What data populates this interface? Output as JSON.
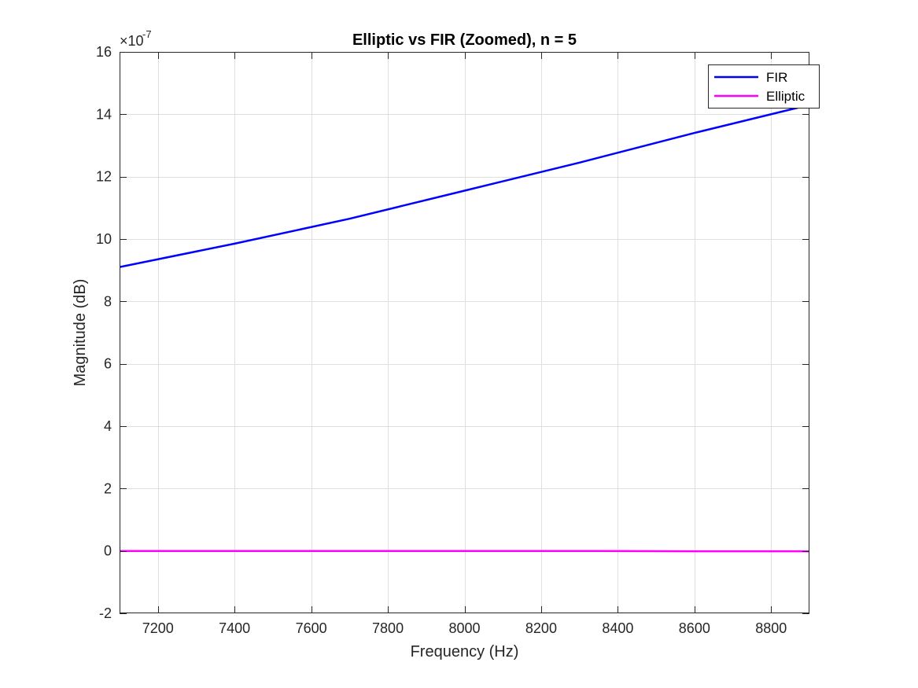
{
  "chart_data": {
    "type": "line",
    "title": "Elliptic vs FIR (Zoomed), n = 5",
    "xlabel": "Frequency (Hz)",
    "ylabel": "Magnitude (dB)",
    "xlim": [
      7100,
      8900
    ],
    "ylim": [
      -2,
      16
    ],
    "y_exponent_label": {
      "base": "×10",
      "exponent": "-7"
    },
    "xticks": [
      7200,
      7400,
      7600,
      7800,
      8000,
      8200,
      8400,
      8600,
      8800
    ],
    "xtick_labels": [
      "7200",
      "7400",
      "7600",
      "7800",
      "8000",
      "8200",
      "8400",
      "8600",
      "8800"
    ],
    "yticks": [
      -2,
      0,
      2,
      4,
      6,
      8,
      10,
      12,
      14,
      16
    ],
    "ytick_labels": [
      "-2",
      "0",
      "2",
      "4",
      "6",
      "8",
      "10",
      "12",
      "14",
      "16"
    ],
    "grid": true,
    "legend_position": "top-right",
    "series": [
      {
        "name": "FIR",
        "color": "#0000ff",
        "x": [
          7100,
          7400,
          7700,
          8000,
          8300,
          8600,
          8900
        ],
        "y": [
          9.1,
          9.85,
          10.65,
          11.55,
          12.45,
          13.4,
          14.3
        ]
      },
      {
        "name": "Elliptic",
        "color": "#ff00ff",
        "x": [
          7100,
          7400,
          7700,
          8000,
          8300,
          8600,
          8900
        ],
        "y": [
          0.0,
          0.0,
          0.0,
          0.0,
          0.0,
          -0.01,
          -0.01
        ]
      }
    ]
  }
}
